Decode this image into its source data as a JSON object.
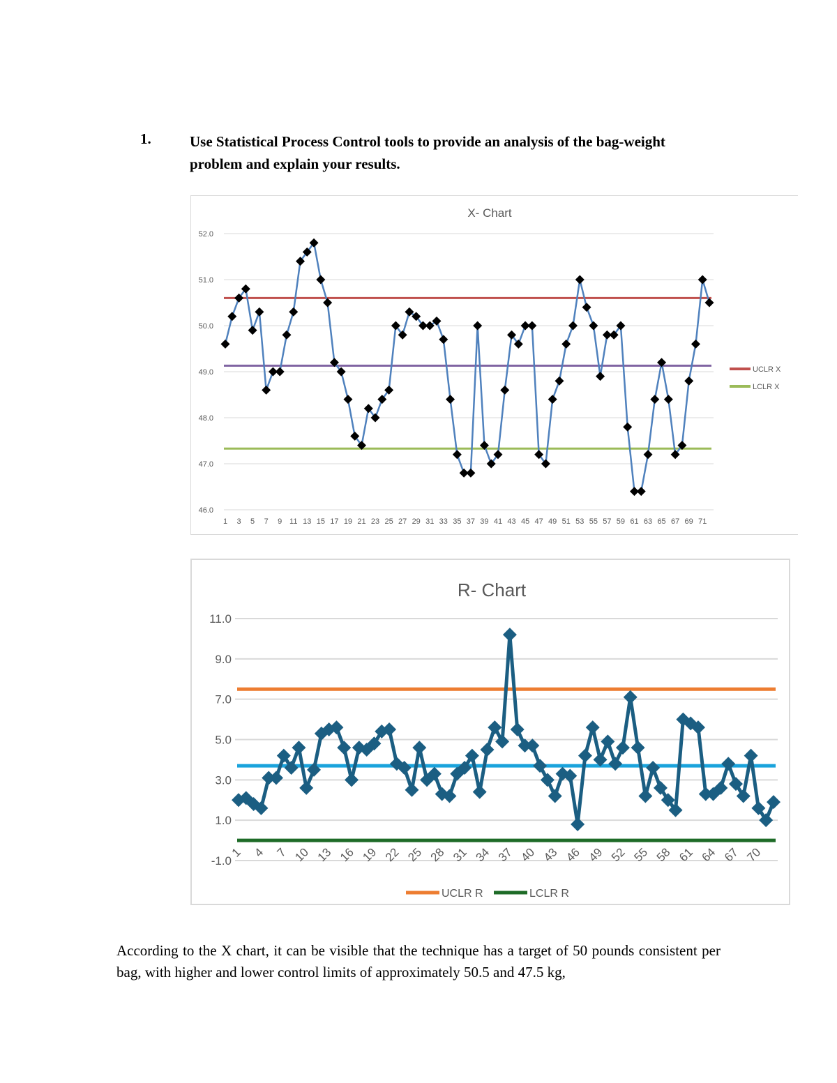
{
  "question": {
    "number": "1.",
    "text": "Use Statistical Process Control tools to provide an analysis of the bag-weight problem and explain your results."
  },
  "chart_data": [
    {
      "type": "line",
      "title": "X- Chart",
      "ylim": [
        46,
        52
      ],
      "yticks": [
        "46.0",
        "47.0",
        "48.0",
        "49.0",
        "50.0",
        "51.0",
        "52.0"
      ],
      "x_tick_step": 2,
      "grid": true,
      "legend_placement": "right",
      "x": [
        1,
        2,
        3,
        4,
        5,
        6,
        7,
        8,
        9,
        10,
        11,
        12,
        13,
        14,
        15,
        16,
        17,
        18,
        19,
        20,
        21,
        22,
        23,
        24,
        25,
        26,
        27,
        28,
        29,
        30,
        31,
        32,
        33,
        34,
        35,
        36,
        37,
        38,
        39,
        40,
        41,
        42,
        43,
        44,
        45,
        46,
        47,
        48,
        49,
        50,
        51,
        52,
        53,
        54,
        55,
        56,
        57,
        58,
        59,
        60,
        61,
        62,
        63,
        64,
        65,
        66,
        67,
        68,
        69,
        70,
        71,
        72
      ],
      "series": [
        {
          "values": [
            49.6,
            50.2,
            50.6,
            50.8,
            49.9,
            50.3,
            48.6,
            49.0,
            49.0,
            49.8,
            50.3,
            51.4,
            51.6,
            51.8,
            51.0,
            50.5,
            49.2,
            49.0,
            48.4,
            47.6,
            47.4,
            48.2,
            48.0,
            48.4,
            48.6,
            50.0,
            49.8,
            50.3,
            50.2,
            50.0,
            50.0,
            50.1,
            49.7,
            48.4,
            47.2,
            46.8,
            46.8,
            50.0,
            47.4,
            47.0,
            47.2,
            48.6,
            49.8,
            49.6,
            50.0,
            50.0,
            47.2,
            47.0,
            48.4,
            48.8,
            49.6,
            50.0,
            51.0,
            50.4,
            50.0,
            48.9,
            49.8,
            49.8,
            50.0,
            47.8,
            46.4,
            46.4,
            47.2,
            48.4,
            49.2,
            48.4,
            47.2,
            47.4,
            48.8,
            49.6,
            51.0,
            50.5
          ],
          "color": "#4f81bd",
          "marker": "diamond",
          "marker_color": "#000000"
        },
        {
          "name": "UCLR X",
          "constant": 50.6,
          "color": "#c0504d"
        },
        {
          "name": "LCLR X",
          "constant": 47.33,
          "color": "#9bbb59"
        },
        {
          "constant": 49.13,
          "color": "#8064a2"
        }
      ]
    },
    {
      "type": "line",
      "title": "R- Chart",
      "ylim": [
        -1,
        11
      ],
      "yticks": [
        "-1.0",
        "1.0",
        "3.0",
        "5.0",
        "7.0",
        "9.0",
        "11.0"
      ],
      "x_tick_step": 3,
      "grid": true,
      "legend_placement": "bottom",
      "x": [
        1,
        2,
        3,
        4,
        5,
        6,
        7,
        8,
        9,
        10,
        11,
        12,
        13,
        14,
        15,
        16,
        17,
        18,
        19,
        20,
        21,
        22,
        23,
        24,
        25,
        26,
        27,
        28,
        29,
        30,
        31,
        32,
        33,
        34,
        35,
        36,
        37,
        38,
        39,
        40,
        41,
        42,
        43,
        44,
        45,
        46,
        47,
        48,
        49,
        50,
        51,
        52,
        53,
        54,
        55,
        56,
        57,
        58,
        59,
        60,
        61,
        62,
        63,
        64,
        65,
        66,
        67,
        68,
        69,
        70,
        71,
        72
      ],
      "series": [
        {
          "values": [
            2.0,
            2.1,
            1.8,
            1.6,
            3.1,
            3.1,
            4.2,
            3.6,
            4.6,
            2.6,
            3.5,
            5.3,
            5.5,
            5.6,
            4.6,
            3.0,
            4.6,
            4.5,
            4.8,
            5.4,
            5.5,
            3.8,
            3.6,
            2.5,
            4.6,
            3.0,
            3.3,
            2.3,
            2.2,
            3.3,
            3.6,
            4.2,
            2.4,
            4.5,
            5.6,
            4.9,
            10.2,
            5.5,
            4.7,
            4.7,
            3.7,
            3.0,
            2.2,
            3.3,
            3.2,
            0.8,
            4.2,
            5.6,
            4.0,
            4.9,
            3.8,
            4.6,
            7.1,
            4.6,
            2.2,
            3.6,
            2.6,
            2.0,
            1.5,
            6.0,
            5.8,
            5.6,
            2.3,
            2.3,
            2.6,
            3.8,
            2.8,
            2.2,
            4.2,
            1.6,
            1.0,
            1.9
          ],
          "color": "#1b5e82",
          "marker": "diamond",
          "marker_color": "#1b5e82"
        },
        {
          "name": "UCLR R",
          "constant": 7.5,
          "color": "#ed7d31"
        },
        {
          "name": "LCLR R",
          "constant": 0.0,
          "color": "#1e6b27"
        },
        {
          "constant": 3.7,
          "color": "#1aa3dc"
        }
      ]
    }
  ],
  "paragraph": "According to the X chart, it can be visible that the technique has a target of 50 pounds consistent per bag, with higher and lower control limits of approximately 50.5 and 47.5 kg,"
}
